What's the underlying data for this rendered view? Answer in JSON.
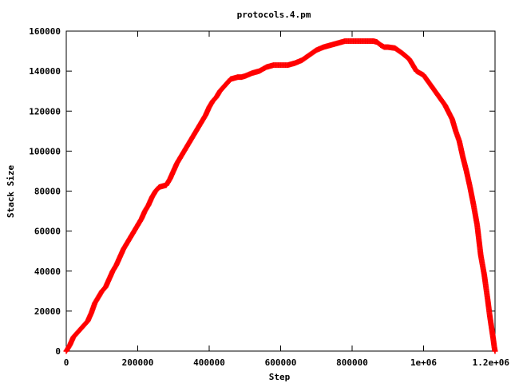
{
  "chart_data": {
    "type": "scatter",
    "title": "protocols.4.pm",
    "xlabel": "Step",
    "ylabel": "Stack Size",
    "xlim": [
      0,
      1200000
    ],
    "ylim": [
      0,
      160000
    ],
    "x_ticks": [
      {
        "value": 0,
        "label": "0"
      },
      {
        "value": 200000,
        "label": "200000"
      },
      {
        "value": 400000,
        "label": "400000"
      },
      {
        "value": 600000,
        "label": "600000"
      },
      {
        "value": 800000,
        "label": "800000"
      },
      {
        "value": 1000000,
        "label": "1e+06"
      },
      {
        "value": 1200000,
        "label": "1.2e+06"
      }
    ],
    "y_ticks": [
      {
        "value": 0,
        "label": "0"
      },
      {
        "value": 20000,
        "label": "20000"
      },
      {
        "value": 40000,
        "label": "40000"
      },
      {
        "value": 60000,
        "label": "60000"
      },
      {
        "value": 80000,
        "label": "80000"
      },
      {
        "value": 100000,
        "label": "100000"
      },
      {
        "value": 120000,
        "label": "120000"
      },
      {
        "value": 140000,
        "label": "140000"
      },
      {
        "value": 160000,
        "label": "160000"
      }
    ],
    "grid": false,
    "marker": "plus",
    "color": "#ff0000",
    "series": [
      {
        "x": [
          0,
          10000,
          20000,
          30000,
          40000,
          50000,
          60000,
          70000,
          80000,
          90000,
          100000,
          110000,
          120000,
          130000,
          140000,
          150000,
          160000,
          170000,
          180000,
          190000,
          200000,
          210000,
          220000,
          230000,
          240000,
          250000,
          260000,
          270000,
          280000,
          290000,
          300000,
          310000,
          320000,
          330000,
          340000,
          350000,
          360000,
          370000,
          380000,
          390000,
          400000,
          410000,
          420000,
          430000,
          440000,
          450000,
          460000,
          470000,
          480000,
          490000,
          500000,
          520000,
          540000,
          560000,
          580000,
          600000,
          620000,
          640000,
          660000,
          680000,
          700000,
          720000,
          740000,
          760000,
          780000,
          800000,
          820000,
          840000,
          860000,
          870000,
          880000,
          890000,
          900000,
          920000,
          940000,
          960000,
          980000,
          1000000,
          1020000,
          1040000,
          1060000,
          1080000,
          1090000,
          1100000,
          1110000,
          1120000,
          1130000,
          1140000,
          1150000,
          1160000,
          1170000,
          1180000,
          1185000,
          1190000,
          1195000,
          1198000,
          1200000
        ],
        "y": [
          0,
          3000,
          7000,
          9000,
          11000,
          13000,
          15000,
          19000,
          24000,
          27000,
          30000,
          32000,
          36000,
          40000,
          43000,
          47000,
          51000,
          54000,
          57000,
          60000,
          63000,
          66000,
          70000,
          73000,
          77000,
          80000,
          82000,
          82500,
          83000,
          86000,
          90000,
          94000,
          97000,
          100000,
          103000,
          106000,
          109000,
          112000,
          115000,
          118000,
          122000,
          125000,
          127000,
          130000,
          132000,
          134000,
          136000,
          136500,
          137000,
          137000,
          137500,
          139000,
          140000,
          142000,
          143000,
          143000,
          143000,
          144000,
          145500,
          148000,
          150500,
          152000,
          153000,
          154000,
          155000,
          155000,
          155000,
          155000,
          155000,
          154500,
          153000,
          152000,
          152000,
          151500,
          149000,
          146000,
          140000,
          138000,
          133000,
          128000,
          123000,
          116000,
          110000,
          105000,
          97000,
          90000,
          82000,
          73000,
          63000,
          48000,
          38000,
          25000,
          18000,
          12000,
          6000,
          2000,
          0
        ]
      }
    ]
  }
}
